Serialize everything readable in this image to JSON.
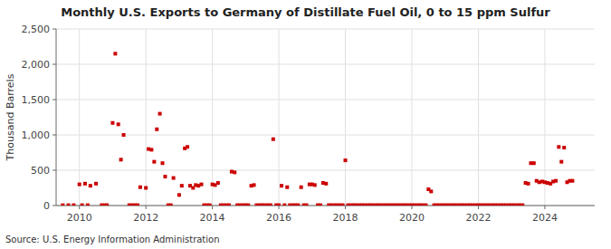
{
  "chart_data": {
    "type": "scatter",
    "title": "Monthly U.S. Exports to Germany of Distillate Fuel Oil, 0 to 15 ppm Sulfur",
    "y_label": "Thousand Barrels",
    "annotations": [
      "Source: U.S. Energy Information Administration"
    ],
    "color": "#cc0000",
    "marker": "square",
    "grid": true,
    "xlim": [
      2009.3,
      2025.5
    ],
    "xticks": [
      2010,
      2012,
      2014,
      2016,
      2018,
      2020,
      2022,
      2024
    ],
    "ylim": [
      0,
      2500
    ],
    "yticks": [
      0,
      500,
      {
        "value": 1000,
        "label": "1,000"
      },
      {
        "value": 1500,
        "label": "1,500"
      },
      {
        "value": 2000,
        "label": "2,000"
      },
      {
        "value": 2500,
        "label": "2,500"
      }
    ],
    "x": [
      2009.5,
      2009.67,
      2009.83,
      2010.0,
      2010.08,
      2010.17,
      2010.25,
      2010.33,
      2010.5,
      2010.67,
      2010.75,
      2010.83,
      2011.0,
      2011.08,
      2011.17,
      2011.25,
      2011.33,
      2011.5,
      2011.58,
      2011.67,
      2011.75,
      2011.83,
      2012.0,
      2012.08,
      2012.17,
      2012.25,
      2012.33,
      2012.42,
      2012.5,
      2012.58,
      2012.67,
      2012.75,
      2012.83,
      2013.0,
      2013.08,
      2013.17,
      2013.25,
      2013.33,
      2013.42,
      2013.5,
      2013.58,
      2013.67,
      2013.75,
      2013.83,
      2013.92,
      2014.0,
      2014.08,
      2014.17,
      2014.25,
      2014.33,
      2014.42,
      2014.5,
      2014.58,
      2014.67,
      2014.75,
      2014.83,
      2014.92,
      2015.0,
      2015.08,
      2015.17,
      2015.25,
      2015.33,
      2015.42,
      2015.5,
      2015.58,
      2015.67,
      2015.75,
      2015.83,
      2015.92,
      2016.0,
      2016.08,
      2016.17,
      2016.25,
      2016.33,
      2016.42,
      2016.5,
      2016.58,
      2016.67,
      2016.75,
      2016.83,
      2016.92,
      2017.0,
      2017.08,
      2017.17,
      2017.25,
      2017.33,
      2017.42,
      2017.5,
      2017.58,
      2017.67,
      2017.75,
      2017.83,
      2017.92,
      2018.0,
      2018.08,
      2018.17,
      2018.25,
      2018.33,
      2018.42,
      2018.5,
      2018.58,
      2018.67,
      2018.75,
      2018.83,
      2018.92,
      2019.0,
      2019.08,
      2019.17,
      2019.25,
      2019.33,
      2019.42,
      2019.5,
      2019.58,
      2019.67,
      2019.75,
      2019.83,
      2019.92,
      2020.0,
      2020.08,
      2020.17,
      2020.25,
      2020.33,
      2020.42,
      2020.5,
      2020.58,
      2020.67,
      2020.75,
      2020.83,
      2020.92,
      2021.0,
      2021.08,
      2021.17,
      2021.25,
      2021.33,
      2021.42,
      2021.5,
      2021.58,
      2021.67,
      2021.75,
      2021.83,
      2021.92,
      2022.0,
      2022.08,
      2022.17,
      2022.25,
      2022.33,
      2022.42,
      2022.5,
      2022.58,
      2022.67,
      2022.75,
      2022.83,
      2022.92,
      2023.0,
      2023.08,
      2023.17,
      2023.25,
      2023.33,
      2023.42,
      2023.5,
      2023.58,
      2023.67,
      2023.75,
      2023.83,
      2023.92,
      2024.0,
      2024.08,
      2024.17,
      2024.25,
      2024.33,
      2024.42,
      2024.5,
      2024.58,
      2024.67,
      2024.75,
      2024.83
    ],
    "values": [
      5,
      5,
      5,
      300,
      5,
      310,
      5,
      280,
      310,
      5,
      5,
      5,
      1170,
      2150,
      1150,
      650,
      1000,
      5,
      5,
      5,
      5,
      260,
      250,
      800,
      790,
      620,
      1080,
      1300,
      600,
      410,
      5,
      5,
      390,
      150,
      280,
      810,
      830,
      280,
      250,
      290,
      280,
      300,
      5,
      5,
      5,
      300,
      290,
      320,
      5,
      5,
      5,
      5,
      480,
      470,
      5,
      5,
      5,
      5,
      5,
      280,
      290,
      5,
      5,
      5,
      5,
      5,
      5,
      940,
      5,
      5,
      280,
      5,
      260,
      5,
      5,
      5,
      5,
      260,
      5,
      5,
      300,
      300,
      290,
      5,
      5,
      320,
      310,
      5,
      5,
      5,
      5,
      5,
      5,
      640,
      5,
      5,
      5,
      5,
      5,
      5,
      5,
      5,
      5,
      5,
      5,
      5,
      5,
      5,
      5,
      5,
      5,
      5,
      5,
      5,
      5,
      5,
      5,
      5,
      5,
      5,
      5,
      5,
      5,
      230,
      200,
      5,
      5,
      5,
      5,
      5,
      5,
      5,
      5,
      5,
      5,
      5,
      5,
      5,
      5,
      5,
      5,
      5,
      5,
      5,
      5,
      5,
      5,
      5,
      5,
      5,
      5,
      5,
      5,
      5,
      5,
      5,
      5,
      5,
      320,
      310,
      600,
      600,
      350,
      330,
      340,
      330,
      320,
      310,
      340,
      350,
      830,
      620,
      820,
      330,
      350,
      350
    ]
  }
}
